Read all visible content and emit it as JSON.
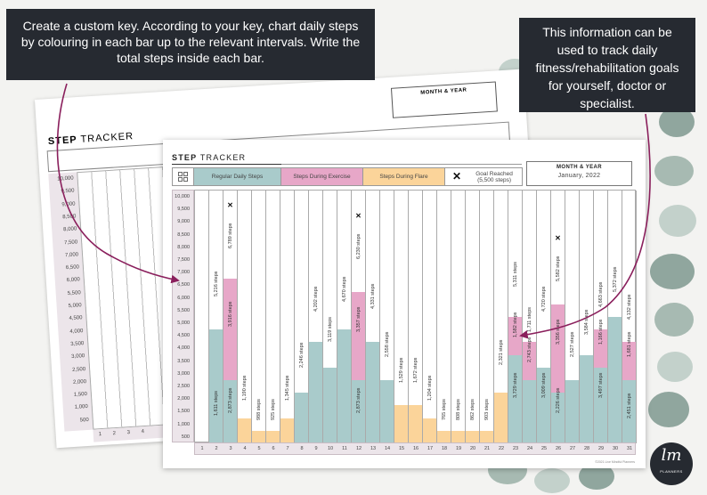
{
  "callouts": {
    "left": "Create a custom key. According to your key, chart daily steps by colouring in each bar up to the relevant intervals. Write the total steps inside each bar.",
    "right": "This information can be used to track daily fitness/rehabilitation goals for yourself, doctor or specialist."
  },
  "back_sheet": {
    "title_bold": "STEP",
    "title_rest": " TRACKER",
    "month_label": "MONTH & YEAR",
    "ticks": [
      "10,000",
      "9,500",
      "9,000",
      "8,500",
      "8,000",
      "7,500",
      "7,000",
      "6,500",
      "6,000",
      "5,500",
      "5,000",
      "4,500",
      "4,000",
      "3,500",
      "3,000",
      "2,500",
      "2,000",
      "1,500",
      "1,000",
      "500"
    ],
    "days": [
      "1",
      "2",
      "3",
      "4"
    ]
  },
  "sheet": {
    "title_bold": "STEP",
    "title_rest": " TRACKER",
    "key": {
      "teal_label": "Regular Daily Steps",
      "pink_label": "Steps During Exercise",
      "orange_label": "Steps During Flare",
      "goal_symbol": "✕",
      "goal_label": "Goal Reached (5,500 steps)"
    },
    "month_label": "MONTH & YEAR",
    "month_value": "January, 2022",
    "copyright": "©2021 Live Mindful Planners",
    "colors": {
      "teal": "#a9cbcb",
      "pink": "#e7a7c8",
      "orange": "#fbd49a",
      "axis": "#ece5ea"
    }
  },
  "logo": {
    "mark": "lm",
    "text": "PLANNERS"
  },
  "chart_data": {
    "type": "bar",
    "stacked": true,
    "ylim": [
      0,
      10000
    ],
    "yticks": [
      "10,000",
      "9,500",
      "9,000",
      "8,500",
      "8,000",
      "7,500",
      "7,000",
      "6,500",
      "6,000",
      "5,500",
      "5,000",
      "4,500",
      "4,000",
      "3,500",
      "3,000",
      "2,500",
      "2,000",
      "1,500",
      "1,000",
      "500"
    ],
    "categories": [
      "1",
      "2",
      "3",
      "4",
      "5",
      "6",
      "7",
      "8",
      "9",
      "10",
      "11",
      "12",
      "13",
      "14",
      "15",
      "16",
      "17",
      "18",
      "19",
      "20",
      "21",
      "22",
      "23",
      "24",
      "25",
      "26",
      "27",
      "28",
      "29",
      "30",
      "31"
    ],
    "days": [
      {
        "day": "1",
        "segments": []
      },
      {
        "day": "2",
        "segments": [
          {
            "c": "teal",
            "h": 3500
          },
          {
            "c": "teal",
            "h": 1000
          }
        ],
        "labels": [
          {
            "t": "1,611 steps",
            "y": 1100
          },
          {
            "t": "5,216 steps",
            "y": 5800
          }
        ]
      },
      {
        "day": "3",
        "segments": [
          {
            "c": "teal",
            "h": 2500
          },
          {
            "c": "pink",
            "h": 4000
          }
        ],
        "labels": [
          {
            "t": "2,873 steps",
            "y": 1200
          },
          {
            "t": "3,916 steps",
            "y": 4600
          },
          {
            "t": "6,789 steps",
            "y": 7700
          }
        ],
        "goal": true
      },
      {
        "day": "4",
        "segments": [
          {
            "c": "orange",
            "h": 1000
          }
        ],
        "labels": [
          {
            "t": "1,190 steps",
            "y": 1700
          }
        ]
      },
      {
        "day": "5",
        "segments": [
          {
            "c": "orange",
            "h": 500
          }
        ],
        "labels": [
          {
            "t": "988 steps",
            "y": 900
          }
        ]
      },
      {
        "day": "6",
        "segments": [
          {
            "c": "orange",
            "h": 500
          }
        ],
        "labels": [
          {
            "t": "925 steps",
            "y": 900
          }
        ]
      },
      {
        "day": "7",
        "segments": [
          {
            "c": "orange",
            "h": 1000
          }
        ],
        "labels": [
          {
            "t": "1,345 steps",
            "y": 1700
          }
        ]
      },
      {
        "day": "8",
        "segments": [
          {
            "c": "teal",
            "h": 2000
          }
        ],
        "labels": [
          {
            "t": "2,246 steps",
            "y": 3000
          }
        ]
      },
      {
        "day": "9",
        "segments": [
          {
            "c": "teal",
            "h": 4000
          }
        ],
        "labels": [
          {
            "t": "4,202 steps",
            "y": 5200
          }
        ]
      },
      {
        "day": "10",
        "segments": [
          {
            "c": "teal",
            "h": 3000
          }
        ],
        "labels": [
          {
            "t": "3,119 steps",
            "y": 4000
          }
        ]
      },
      {
        "day": "11",
        "segments": [
          {
            "c": "teal",
            "h": 4500
          }
        ],
        "labels": [
          {
            "t": "4,670 steps",
            "y": 5600
          }
        ]
      },
      {
        "day": "12",
        "segments": [
          {
            "c": "teal",
            "h": 2500
          },
          {
            "c": "pink",
            "h": 3500
          }
        ],
        "labels": [
          {
            "t": "2,873 steps",
            "y": 1200
          },
          {
            "t": "3,357 steps",
            "y": 4400
          },
          {
            "t": "6,230 steps",
            "y": 7300
          }
        ],
        "goal": true
      },
      {
        "day": "13",
        "segments": [
          {
            "c": "teal",
            "h": 4000
          }
        ],
        "labels": [
          {
            "t": "4,331 steps",
            "y": 5300
          }
        ]
      },
      {
        "day": "14",
        "segments": [
          {
            "c": "teal",
            "h": 2500
          }
        ],
        "labels": [
          {
            "t": "2,558 steps",
            "y": 3400
          }
        ]
      },
      {
        "day": "15",
        "segments": [
          {
            "c": "orange",
            "h": 1500
          }
        ],
        "labels": [
          {
            "t": "1,529 steps",
            "y": 2400
          }
        ]
      },
      {
        "day": "16",
        "segments": [
          {
            "c": "orange",
            "h": 1500
          }
        ],
        "labels": [
          {
            "t": "1,672 steps",
            "y": 2400
          }
        ]
      },
      {
        "day": "17",
        "segments": [
          {
            "c": "orange",
            "h": 1000
          }
        ],
        "labels": [
          {
            "t": "1,204 steps",
            "y": 1700
          }
        ]
      },
      {
        "day": "18",
        "segments": [
          {
            "c": "orange",
            "h": 500
          }
        ],
        "labels": [
          {
            "t": "765 steps",
            "y": 900
          }
        ]
      },
      {
        "day": "19",
        "segments": [
          {
            "c": "orange",
            "h": 500
          }
        ],
        "labels": [
          {
            "t": "808 steps",
            "y": 900
          }
        ]
      },
      {
        "day": "20",
        "segments": [
          {
            "c": "orange",
            "h": 500
          }
        ],
        "labels": [
          {
            "t": "862 steps",
            "y": 900
          }
        ]
      },
      {
        "day": "21",
        "segments": [
          {
            "c": "orange",
            "h": 500
          }
        ],
        "labels": [
          {
            "t": "903 steps",
            "y": 900
          }
        ]
      },
      {
        "day": "22",
        "segments": [
          {
            "c": "orange",
            "h": 2000
          }
        ],
        "labels": [
          {
            "t": "2,321 steps",
            "y": 3100
          }
        ]
      },
      {
        "day": "23",
        "segments": [
          {
            "c": "teal",
            "h": 3500
          },
          {
            "c": "pink",
            "h": 1500
          }
        ],
        "labels": [
          {
            "t": "3,729 steps",
            "y": 1800
          },
          {
            "t": "1,582 steps",
            "y": 4200
          },
          {
            "t": "5,311 steps",
            "y": 6200
          }
        ]
      },
      {
        "day": "24",
        "segments": [
          {
            "c": "teal",
            "h": 2500
          },
          {
            "c": "pink",
            "h": 1500
          }
        ],
        "labels": [
          {
            "t": "2,743 steps",
            "y": 3200
          },
          {
            "t": "1,711 steps",
            "y": 4400
          }
        ]
      },
      {
        "day": "25",
        "segments": [
          {
            "c": "teal",
            "h": 3000
          }
        ],
        "labels": [
          {
            "t": "3,009 steps",
            "y": 1800
          },
          {
            "t": "4,720 steps",
            "y": 5200
          }
        ]
      },
      {
        "day": "26",
        "segments": [
          {
            "c": "teal",
            "h": 2000
          },
          {
            "c": "pink",
            "h": 3500
          }
        ],
        "labels": [
          {
            "t": "2,226 steps",
            "y": 1200
          },
          {
            "t": "3,356 steps",
            "y": 3900
          },
          {
            "t": "5,582 steps",
            "y": 6400
          }
        ],
        "goal": true
      },
      {
        "day": "27",
        "segments": [
          {
            "c": "teal",
            "h": 2500
          }
        ],
        "labels": [
          {
            "t": "2,527 steps",
            "y": 3400
          }
        ]
      },
      {
        "day": "28",
        "segments": [
          {
            "c": "teal",
            "h": 3500
          }
        ],
        "labels": [
          {
            "t": "3,584 steps",
            "y": 4300
          }
        ]
      },
      {
        "day": "29",
        "segments": [
          {
            "c": "teal",
            "h": 3000
          },
          {
            "c": "pink",
            "h": 1500
          }
        ],
        "labels": [
          {
            "t": "3,497 steps",
            "y": 1800
          },
          {
            "t": "1,166 steps",
            "y": 3900
          },
          {
            "t": "4,663 steps",
            "y": 5400
          }
        ]
      },
      {
        "day": "30",
        "segments": [
          {
            "c": "teal",
            "h": 5000
          }
        ],
        "labels": [
          {
            "t": "5,372 steps",
            "y": 6000
          }
        ]
      },
      {
        "day": "31",
        "segments": [
          {
            "c": "teal",
            "h": 2500
          },
          {
            "c": "pink",
            "h": 1500
          }
        ],
        "labels": [
          {
            "t": "2,451 steps",
            "y": 1000
          },
          {
            "t": "1,681 steps",
            "y": 3400
          },
          {
            "t": "4,132 steps",
            "y": 4900
          }
        ]
      }
    ]
  }
}
